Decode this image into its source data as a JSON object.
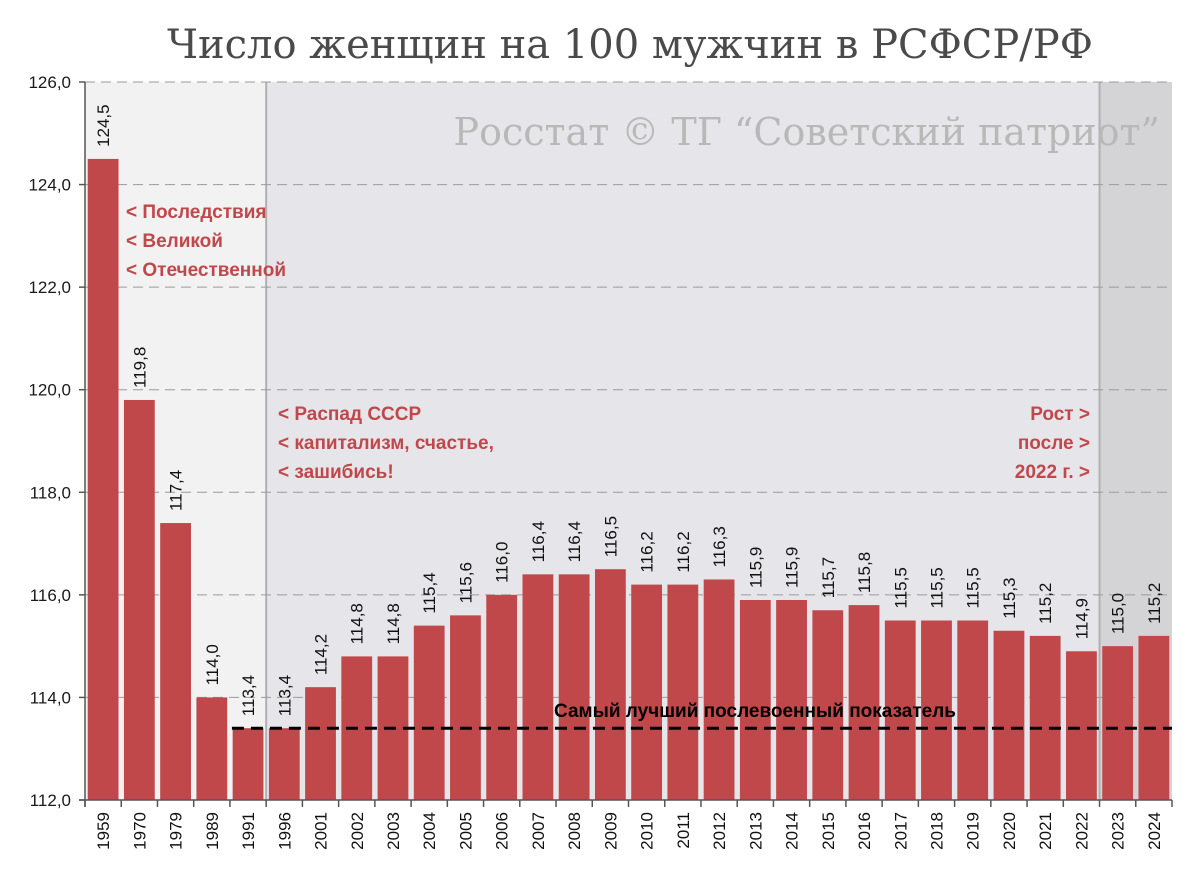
{
  "title": "Число женщин на 100 мужчин в РСФСР/РФ",
  "watermark": "Росстат © ТГ “Советский патриот”",
  "colors": {
    "bar": "#c0474a",
    "annotation": "#c0474a",
    "era1_bg": "#f2f2f2",
    "era2_bg": "#e6e6ea",
    "era3_bg": "#d4d4d6"
  },
  "annotations": [
    {
      "lines": [
        "< Последствия",
        "< Великой",
        "< Отечественной"
      ]
    },
    {
      "lines": [
        "< Распад СССР",
        "< капитализм, счастье,",
        "< зашибись!"
      ]
    },
    {
      "lines": [
        "Рост >",
        "после >",
        "2022 г. >"
      ]
    }
  ],
  "reference_line": {
    "value": 113.4,
    "label": "Самый лучший послевоенный показатель"
  },
  "chart_data": {
    "type": "bar",
    "title": "Число женщин на 100 мужчин в РСФСР/РФ",
    "xlabel": "",
    "ylabel": "",
    "ylim": [
      112.0,
      126.0
    ],
    "yticks": [
      112.0,
      114.0,
      116.0,
      118.0,
      120.0,
      122.0,
      124.0,
      126.0
    ],
    "ytick_labels": [
      "112,0",
      "114,0",
      "116,0",
      "118,0",
      "120,0",
      "122,0",
      "124,0",
      "126,0"
    ],
    "grid": true,
    "categories": [
      "1959",
      "1970",
      "1979",
      "1989",
      "1991",
      "1996",
      "2001",
      "2002",
      "2003",
      "2004",
      "2005",
      "2006",
      "2007",
      "2008",
      "2009",
      "2010",
      "2011",
      "2012",
      "2013",
      "2014",
      "2015",
      "2016",
      "2017",
      "2018",
      "2019",
      "2020",
      "2021",
      "2022",
      "2023",
      "2024"
    ],
    "values": [
      124.5,
      119.8,
      117.4,
      114.0,
      113.4,
      113.4,
      114.2,
      114.8,
      114.8,
      115.4,
      115.6,
      116.0,
      116.4,
      116.4,
      116.5,
      116.2,
      116.2,
      116.3,
      115.9,
      115.9,
      115.7,
      115.8,
      115.5,
      115.5,
      115.5,
      115.3,
      115.2,
      114.9,
      115.0,
      115.2
    ],
    "value_labels": [
      "124,5",
      "119,8",
      "117,4",
      "114,0",
      "113,4",
      "113,4",
      "114,2",
      "114,8",
      "114,8",
      "115,4",
      "115,6",
      "116,0",
      "116,4",
      "116,4",
      "116,5",
      "116,2",
      "116,2",
      "116,3",
      "115,9",
      "115,9",
      "115,7",
      "115,8",
      "115,5",
      "115,5",
      "115,5",
      "115,3",
      "115,2",
      "114,9",
      "115,0",
      "115,2"
    ]
  }
}
